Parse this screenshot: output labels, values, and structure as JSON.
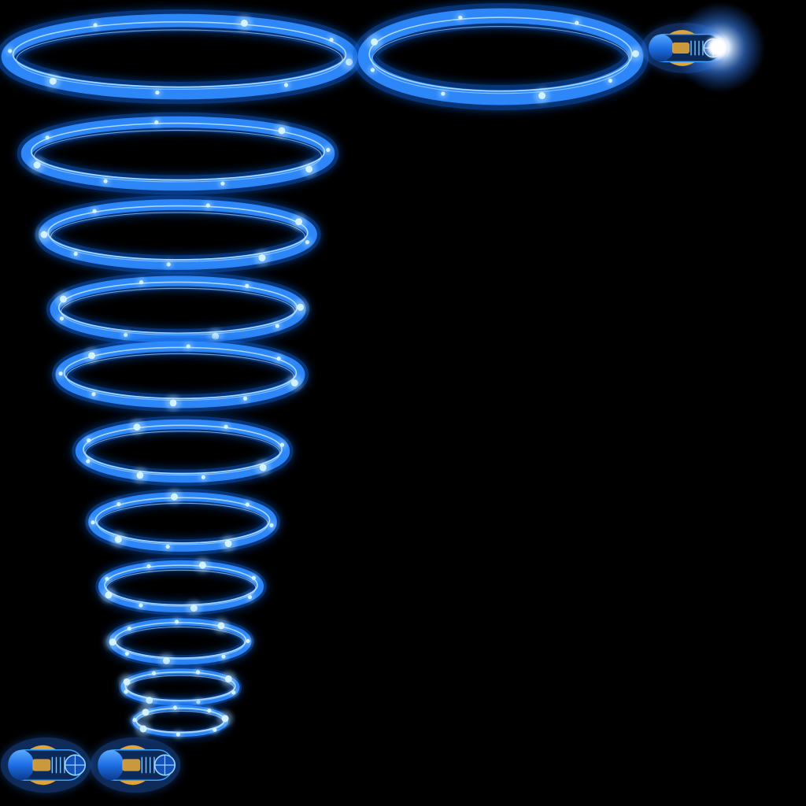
{
  "sprite_sheet": {
    "background": "#000000",
    "colors": {
      "ring_outer": "#0a5fd8",
      "ring_mid": "#2f8cff",
      "ring_core": "#bfe6ff",
      "sparkle": "#d8f6ff",
      "pod_body": "#1e6ee6",
      "pod_dark": "#0b2a5a",
      "pod_gold": "#e0a53a",
      "pod_glow": "#2b7bff",
      "flash": "#ffffff"
    },
    "sprites": [
      {
        "kind": "ring-cone",
        "ring_count": 12,
        "icon": "energy-ring-icon"
      },
      {
        "kind": "ring-single",
        "ring_count": 1,
        "icon": "energy-ring-icon"
      },
      {
        "kind": "pod-charged",
        "icon": "energy-pod-icon"
      },
      {
        "kind": "pod",
        "count": 2,
        "icon": "energy-pod-icon"
      }
    ]
  }
}
